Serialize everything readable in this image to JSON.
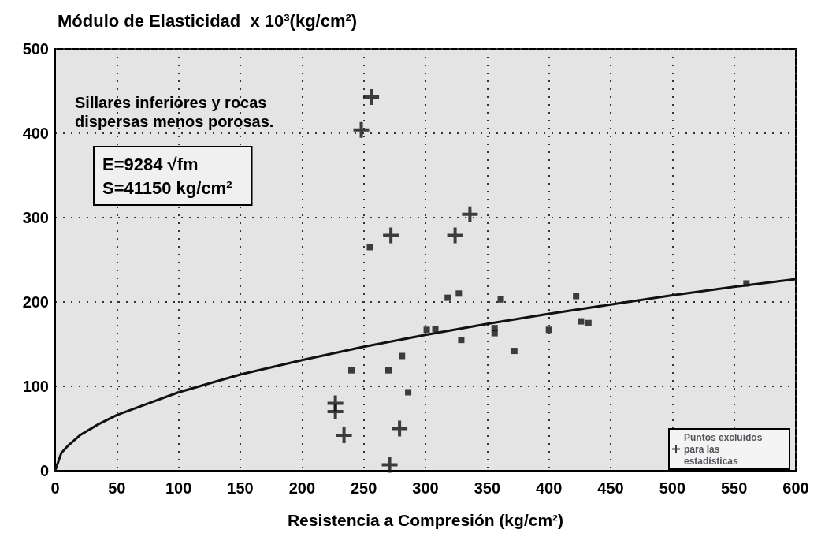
{
  "chart_data": {
    "type": "scatter",
    "ylabel": "Módulo de Elasticidad  x 10³(kg/cm²)",
    "xlabel": "Resistencia a Compresión (kg/cm²)",
    "annotations": [
      "Sillares inferiores y rocas dispersas menos porosas.",
      "E=9284 √fm",
      "S=41150 kg/cm²"
    ],
    "xlim": [
      0,
      600
    ],
    "xticks": [
      0,
      50,
      100,
      150,
      200,
      250,
      300,
      350,
      400,
      450,
      500,
      550,
      600
    ],
    "ylim": [
      0,
      500
    ],
    "yticks": [
      0,
      100,
      200,
      300,
      400,
      500
    ],
    "grid": true,
    "legend": "bottom right",
    "series": [
      {
        "marker": "square",
        "color": "#111111",
        "x": [
          240,
          270,
          281,
          301,
          308,
          318,
          327,
          329,
          361,
          356,
          356,
          372,
          400,
          422,
          426,
          432,
          286,
          255,
          560
        ],
        "values": [
          119,
          119,
          136,
          167,
          168,
          205,
          210,
          155,
          203,
          169,
          163,
          142,
          167,
          207,
          177,
          175,
          93,
          265,
          222
        ]
      },
      {
        "marker": "cross",
        "name": "Puntos excluidos para las estadísticas",
        "color": "#111111",
        "x": [
          256,
          248,
          272,
          324,
          336,
          227,
          227,
          234,
          279,
          271
        ],
        "values": [
          443,
          404,
          279,
          279,
          304,
          80,
          70,
          42,
          50,
          7
        ]
      },
      {
        "type": "line",
        "marker": "none",
        "line_style": "solid",
        "color": "#111111",
        "x": [
          0,
          5,
          10,
          20,
          35,
          50,
          100,
          150,
          200,
          250,
          300,
          350,
          400,
          450,
          500,
          550,
          600
        ],
        "values": [
          0,
          21,
          29,
          42,
          55,
          66,
          93,
          114,
          131,
          147,
          161,
          174,
          186,
          197,
          208,
          218,
          227
        ]
      }
    ]
  }
}
